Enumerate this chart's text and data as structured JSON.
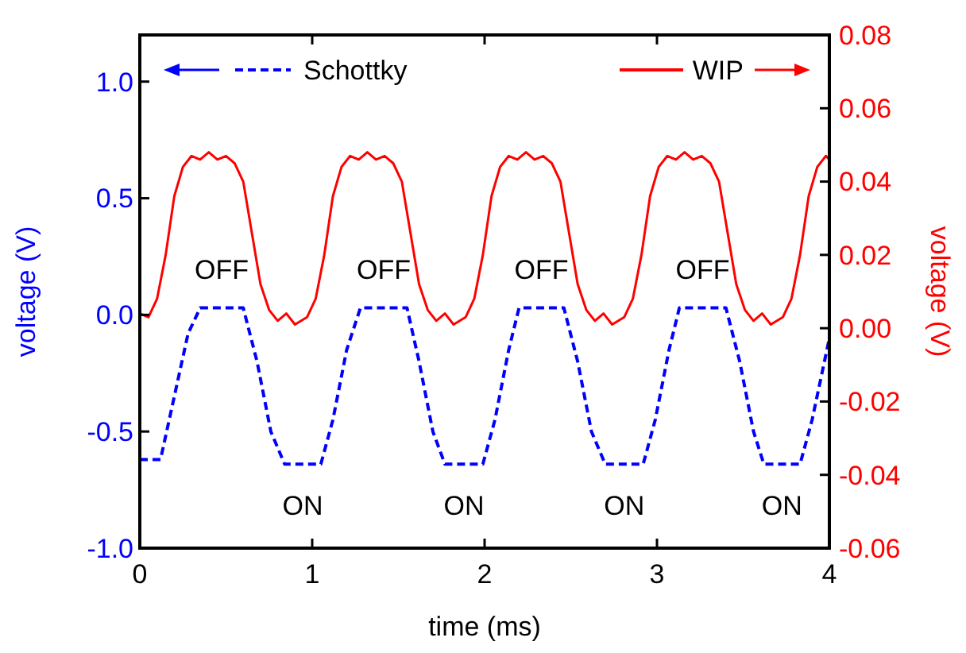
{
  "chart_data": {
    "type": "line",
    "xlabel": "time (ms)",
    "ylabel": "voltage (V)",
    "y2label": "voltage (V)",
    "xlim": [
      0,
      4
    ],
    "xticks": [
      0,
      1,
      2,
      3,
      4
    ],
    "ylim": [
      -1,
      1.2
    ],
    "yticks": [
      {
        "value": -1,
        "label": "-1.0"
      },
      {
        "value": -0.5,
        "label": "-0.5"
      },
      {
        "value": 0,
        "label": "0.0"
      },
      {
        "value": 0.5,
        "label": "0.5"
      },
      {
        "value": 1,
        "label": "1.0"
      }
    ],
    "y2lim": [
      -0.06,
      0.08
    ],
    "y2ticks": [
      {
        "value": -0.06,
        "label": "-0.06"
      },
      {
        "value": -0.04,
        "label": "-0.04"
      },
      {
        "value": -0.02,
        "label": "-0.02"
      },
      {
        "value": 0,
        "label": "0.00"
      },
      {
        "value": 0.02,
        "label": "0.02"
      },
      {
        "value": 0.04,
        "label": "0.04"
      },
      {
        "value": 0.06,
        "label": "0.06"
      },
      {
        "value": 0.08,
        "label": "0.08"
      }
    ],
    "legend": "top",
    "grid": false,
    "series": [
      {
        "name": "Schottky",
        "color": "#0000ff",
        "line_style": "dashed",
        "x": [
          0,
          0.12,
          0.2,
          0.28,
          0.35,
          0.6,
          0.68,
          0.76,
          0.84,
          1.05,
          1.12,
          1.2,
          1.28,
          1.55,
          1.62,
          1.7,
          1.77,
          1.99,
          2.06,
          2.14,
          2.2,
          2.46,
          2.54,
          2.62,
          2.7,
          2.92,
          2.99,
          3.07,
          3.13,
          3.4,
          3.48,
          3.56,
          3.62,
          3.83,
          3.9,
          4.0
        ],
        "values": [
          -0.62,
          -0.62,
          -0.35,
          -0.08,
          0.03,
          0.03,
          -0.2,
          -0.5,
          -0.64,
          -0.64,
          -0.45,
          -0.15,
          0.03,
          0.03,
          -0.2,
          -0.5,
          -0.64,
          -0.64,
          -0.45,
          -0.15,
          0.03,
          0.03,
          -0.2,
          -0.5,
          -0.64,
          -0.64,
          -0.45,
          -0.15,
          0.03,
          0.03,
          -0.2,
          -0.5,
          -0.64,
          -0.64,
          -0.45,
          -0.1
        ]
      },
      {
        "name": "WIP",
        "color": "#ff0000",
        "line_style": "solid",
        "axis": "y2",
        "x": [
          0,
          0.05,
          0.1,
          0.15,
          0.2,
          0.25,
          0.3,
          0.35,
          0.4,
          0.45,
          0.5,
          0.55,
          0.6,
          0.65,
          0.7,
          0.75,
          0.8,
          0.85,
          0.9,
          0.97,
          1.02,
          1.07,
          1.12,
          1.17,
          1.22,
          1.27,
          1.32,
          1.37,
          1.42,
          1.47,
          1.52,
          1.57,
          1.62,
          1.67,
          1.72,
          1.77,
          1.82,
          1.89,
          1.94,
          1.99,
          2.04,
          2.09,
          2.14,
          2.19,
          2.24,
          2.29,
          2.34,
          2.39,
          2.44,
          2.49,
          2.54,
          2.59,
          2.64,
          2.69,
          2.74,
          2.81,
          2.86,
          2.91,
          2.96,
          3.01,
          3.06,
          3.11,
          3.16,
          3.21,
          3.26,
          3.31,
          3.36,
          3.41,
          3.46,
          3.51,
          3.56,
          3.61,
          3.66,
          3.73,
          3.78,
          3.83,
          3.88,
          3.93,
          3.98,
          4.0
        ],
        "values": [
          0.004,
          0.003,
          0.008,
          0.02,
          0.036,
          0.044,
          0.047,
          0.046,
          0.048,
          0.046,
          0.047,
          0.045,
          0.04,
          0.026,
          0.012,
          0.005,
          0.002,
          0.004,
          0.001,
          0.003,
          0.008,
          0.02,
          0.036,
          0.044,
          0.047,
          0.046,
          0.048,
          0.046,
          0.047,
          0.045,
          0.04,
          0.026,
          0.012,
          0.005,
          0.002,
          0.004,
          0.001,
          0.003,
          0.008,
          0.02,
          0.036,
          0.044,
          0.047,
          0.046,
          0.048,
          0.046,
          0.047,
          0.045,
          0.04,
          0.026,
          0.012,
          0.005,
          0.002,
          0.004,
          0.001,
          0.003,
          0.008,
          0.02,
          0.036,
          0.044,
          0.047,
          0.046,
          0.048,
          0.046,
          0.047,
          0.045,
          0.04,
          0.026,
          0.012,
          0.005,
          0.002,
          0.004,
          0.001,
          0.003,
          0.008,
          0.02,
          0.036,
          0.044,
          0.047,
          0.046
        ]
      }
    ],
    "annotations": [
      "OFF",
      "OFF",
      "OFF",
      "OFF",
      "ON",
      "ON",
      "ON",
      "ON"
    ]
  }
}
